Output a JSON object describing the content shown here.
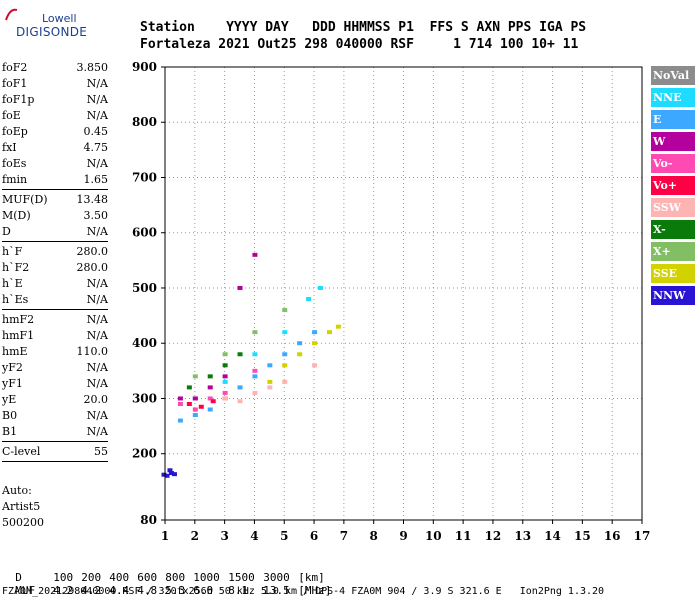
{
  "logo": {
    "line1": "Lowell",
    "line2": "DIGISONDE"
  },
  "header": {
    "row1": "Station    YYYY DAY   DDD HHMMSS P1  FFS S AXN PPS IGA PS",
    "row2": "Fortaleza 2021 Out25 298 040000 RSF     1 714 100 10+ 11"
  },
  "params": {
    "group1": [
      {
        "label": "foF2",
        "value": "3.850"
      },
      {
        "label": "foF1",
        "value": "N/A"
      },
      {
        "label": "foF1p",
        "value": "N/A"
      },
      {
        "label": "foE",
        "value": "N/A"
      },
      {
        "label": "foEp",
        "value": "0.45"
      },
      {
        "label": "fxI",
        "value": "4.75"
      },
      {
        "label": "foEs",
        "value": "N/A"
      },
      {
        "label": "fmin",
        "value": "1.65"
      }
    ],
    "group2": [
      {
        "label": "MUF(D)",
        "value": "13.48"
      },
      {
        "label": "M(D)",
        "value": "3.50"
      },
      {
        "label": "D",
        "value": "N/A"
      }
    ],
    "group3": [
      {
        "label": "h`F",
        "value": "280.0"
      },
      {
        "label": "h`F2",
        "value": "280.0"
      },
      {
        "label": "h`E",
        "value": "N/A"
      },
      {
        "label": "h`Es",
        "value": "N/A"
      }
    ],
    "group4": [
      {
        "label": "hmF2",
        "value": "N/A"
      },
      {
        "label": "hmF1",
        "value": "N/A"
      },
      {
        "label": "hmE",
        "value": "110.0"
      },
      {
        "label": "yF2",
        "value": "N/A"
      },
      {
        "label": "yF1",
        "value": "N/A"
      },
      {
        "label": "yE",
        "value": "20.0"
      },
      {
        "label": "B0",
        "value": "N/A"
      },
      {
        "label": "B1",
        "value": "N/A"
      }
    ],
    "group5": [
      {
        "label": "C-level",
        "value": "55"
      }
    ]
  },
  "autoscaling": {
    "line1": "Auto:",
    "line2": "Artist5",
    "line3": "500200"
  },
  "legend": [
    {
      "label": "NoVal",
      "color": "#8c8c8c"
    },
    {
      "label": "NNE",
      "color": "#1edcff"
    },
    {
      "label": "E",
      "color": "#3ca8ff"
    },
    {
      "label": "W",
      "color": "#b4009c"
    },
    {
      "label": "Vo-",
      "color": "#ff4ab4"
    },
    {
      "label": "Vo+",
      "color": "#ff0046"
    },
    {
      "label": "SSW",
      "color": "#ffb4b4"
    },
    {
      "label": "X-",
      "color": "#0a7a0a"
    },
    {
      "label": "X+",
      "color": "#82be64"
    },
    {
      "label": "SSE",
      "color": "#d2d200"
    },
    {
      "label": "NNW",
      "color": "#2814d2"
    }
  ],
  "muf_table": {
    "d_label": "D",
    "d_values": [
      "100",
      "200",
      "400",
      "600",
      "800",
      "1000",
      "1500",
      "3000"
    ],
    "d_unit": "[km]",
    "m_label": "MUF",
    "m_values": [
      "4.2",
      "4.2",
      "4.4",
      "4.8",
      "5.3",
      "6.0",
      "8.1",
      "13.5"
    ],
    "m_unit": "[MHz]"
  },
  "footer": "FZA0M_2021298040000.RSF / 320fx256h 50 kHz 5.0 km / DPS-4 FZA0M 904 / 3.9 S 321.6 E   Ion2Png 1.3.20",
  "chart_data": {
    "type": "scatter",
    "xlabel": "",
    "ylabel": "",
    "xlim": [
      1,
      17
    ],
    "ylim": [
      80,
      900
    ],
    "x_ticks": [
      1,
      2,
      3,
      4,
      5,
      6,
      7,
      8,
      9,
      10,
      11,
      12,
      13,
      14,
      15,
      16,
      17
    ],
    "y_ticks": [
      80,
      200,
      300,
      400,
      500,
      600,
      700,
      800,
      900
    ],
    "grid": true,
    "series": [
      {
        "name": "NNW",
        "points": [
          [
            0.95,
            162
          ],
          [
            1.05,
            160
          ],
          [
            1.15,
            170
          ],
          [
            1.2,
            165
          ],
          [
            1.3,
            163
          ]
        ]
      },
      {
        "name": "E",
        "points": [
          [
            1.5,
            260
          ],
          [
            2.0,
            270
          ],
          [
            2.5,
            280
          ],
          [
            3.0,
            300
          ],
          [
            3.5,
            320
          ],
          [
            4.0,
            340
          ],
          [
            4.5,
            360
          ],
          [
            5.0,
            380
          ],
          [
            5.5,
            400
          ],
          [
            6.0,
            420
          ]
        ]
      },
      {
        "name": "NNE",
        "points": [
          [
            2.0,
            300
          ],
          [
            3.0,
            330
          ],
          [
            4.0,
            380
          ],
          [
            5.0,
            420
          ],
          [
            5.8,
            480
          ],
          [
            6.2,
            500
          ]
        ]
      },
      {
        "name": "SSE",
        "points": [
          [
            4.5,
            330
          ],
          [
            5.0,
            360
          ],
          [
            5.5,
            380
          ],
          [
            6.0,
            400
          ],
          [
            6.5,
            420
          ],
          [
            6.8,
            430
          ]
        ]
      },
      {
        "name": "W",
        "points": [
          [
            1.5,
            300
          ],
          [
            2.0,
            300
          ],
          [
            2.5,
            320
          ],
          [
            3.0,
            340
          ],
          [
            3.5,
            500
          ],
          [
            4.0,
            560
          ]
        ]
      },
      {
        "name": "Vo-",
        "points": [
          [
            1.5,
            290
          ],
          [
            2.0,
            280
          ],
          [
            2.5,
            300
          ],
          [
            3.0,
            310
          ],
          [
            4.0,
            350
          ]
        ]
      },
      {
        "name": "Vo+",
        "points": [
          [
            1.8,
            290
          ],
          [
            2.2,
            285
          ],
          [
            2.6,
            295
          ],
          [
            3.0,
            300
          ]
        ]
      },
      {
        "name": "SSW",
        "points": [
          [
            3.0,
            300
          ],
          [
            3.5,
            295
          ],
          [
            4.0,
            310
          ],
          [
            4.5,
            320
          ],
          [
            5.0,
            330
          ],
          [
            6.0,
            360
          ]
        ]
      },
      {
        "name": "X-",
        "points": [
          [
            1.8,
            320
          ],
          [
            2.5,
            340
          ],
          [
            3.0,
            360
          ],
          [
            3.5,
            380
          ]
        ]
      },
      {
        "name": "X+",
        "points": [
          [
            2.0,
            340
          ],
          [
            3.0,
            380
          ],
          [
            4.0,
            420
          ],
          [
            5.0,
            460
          ]
        ]
      }
    ]
  }
}
